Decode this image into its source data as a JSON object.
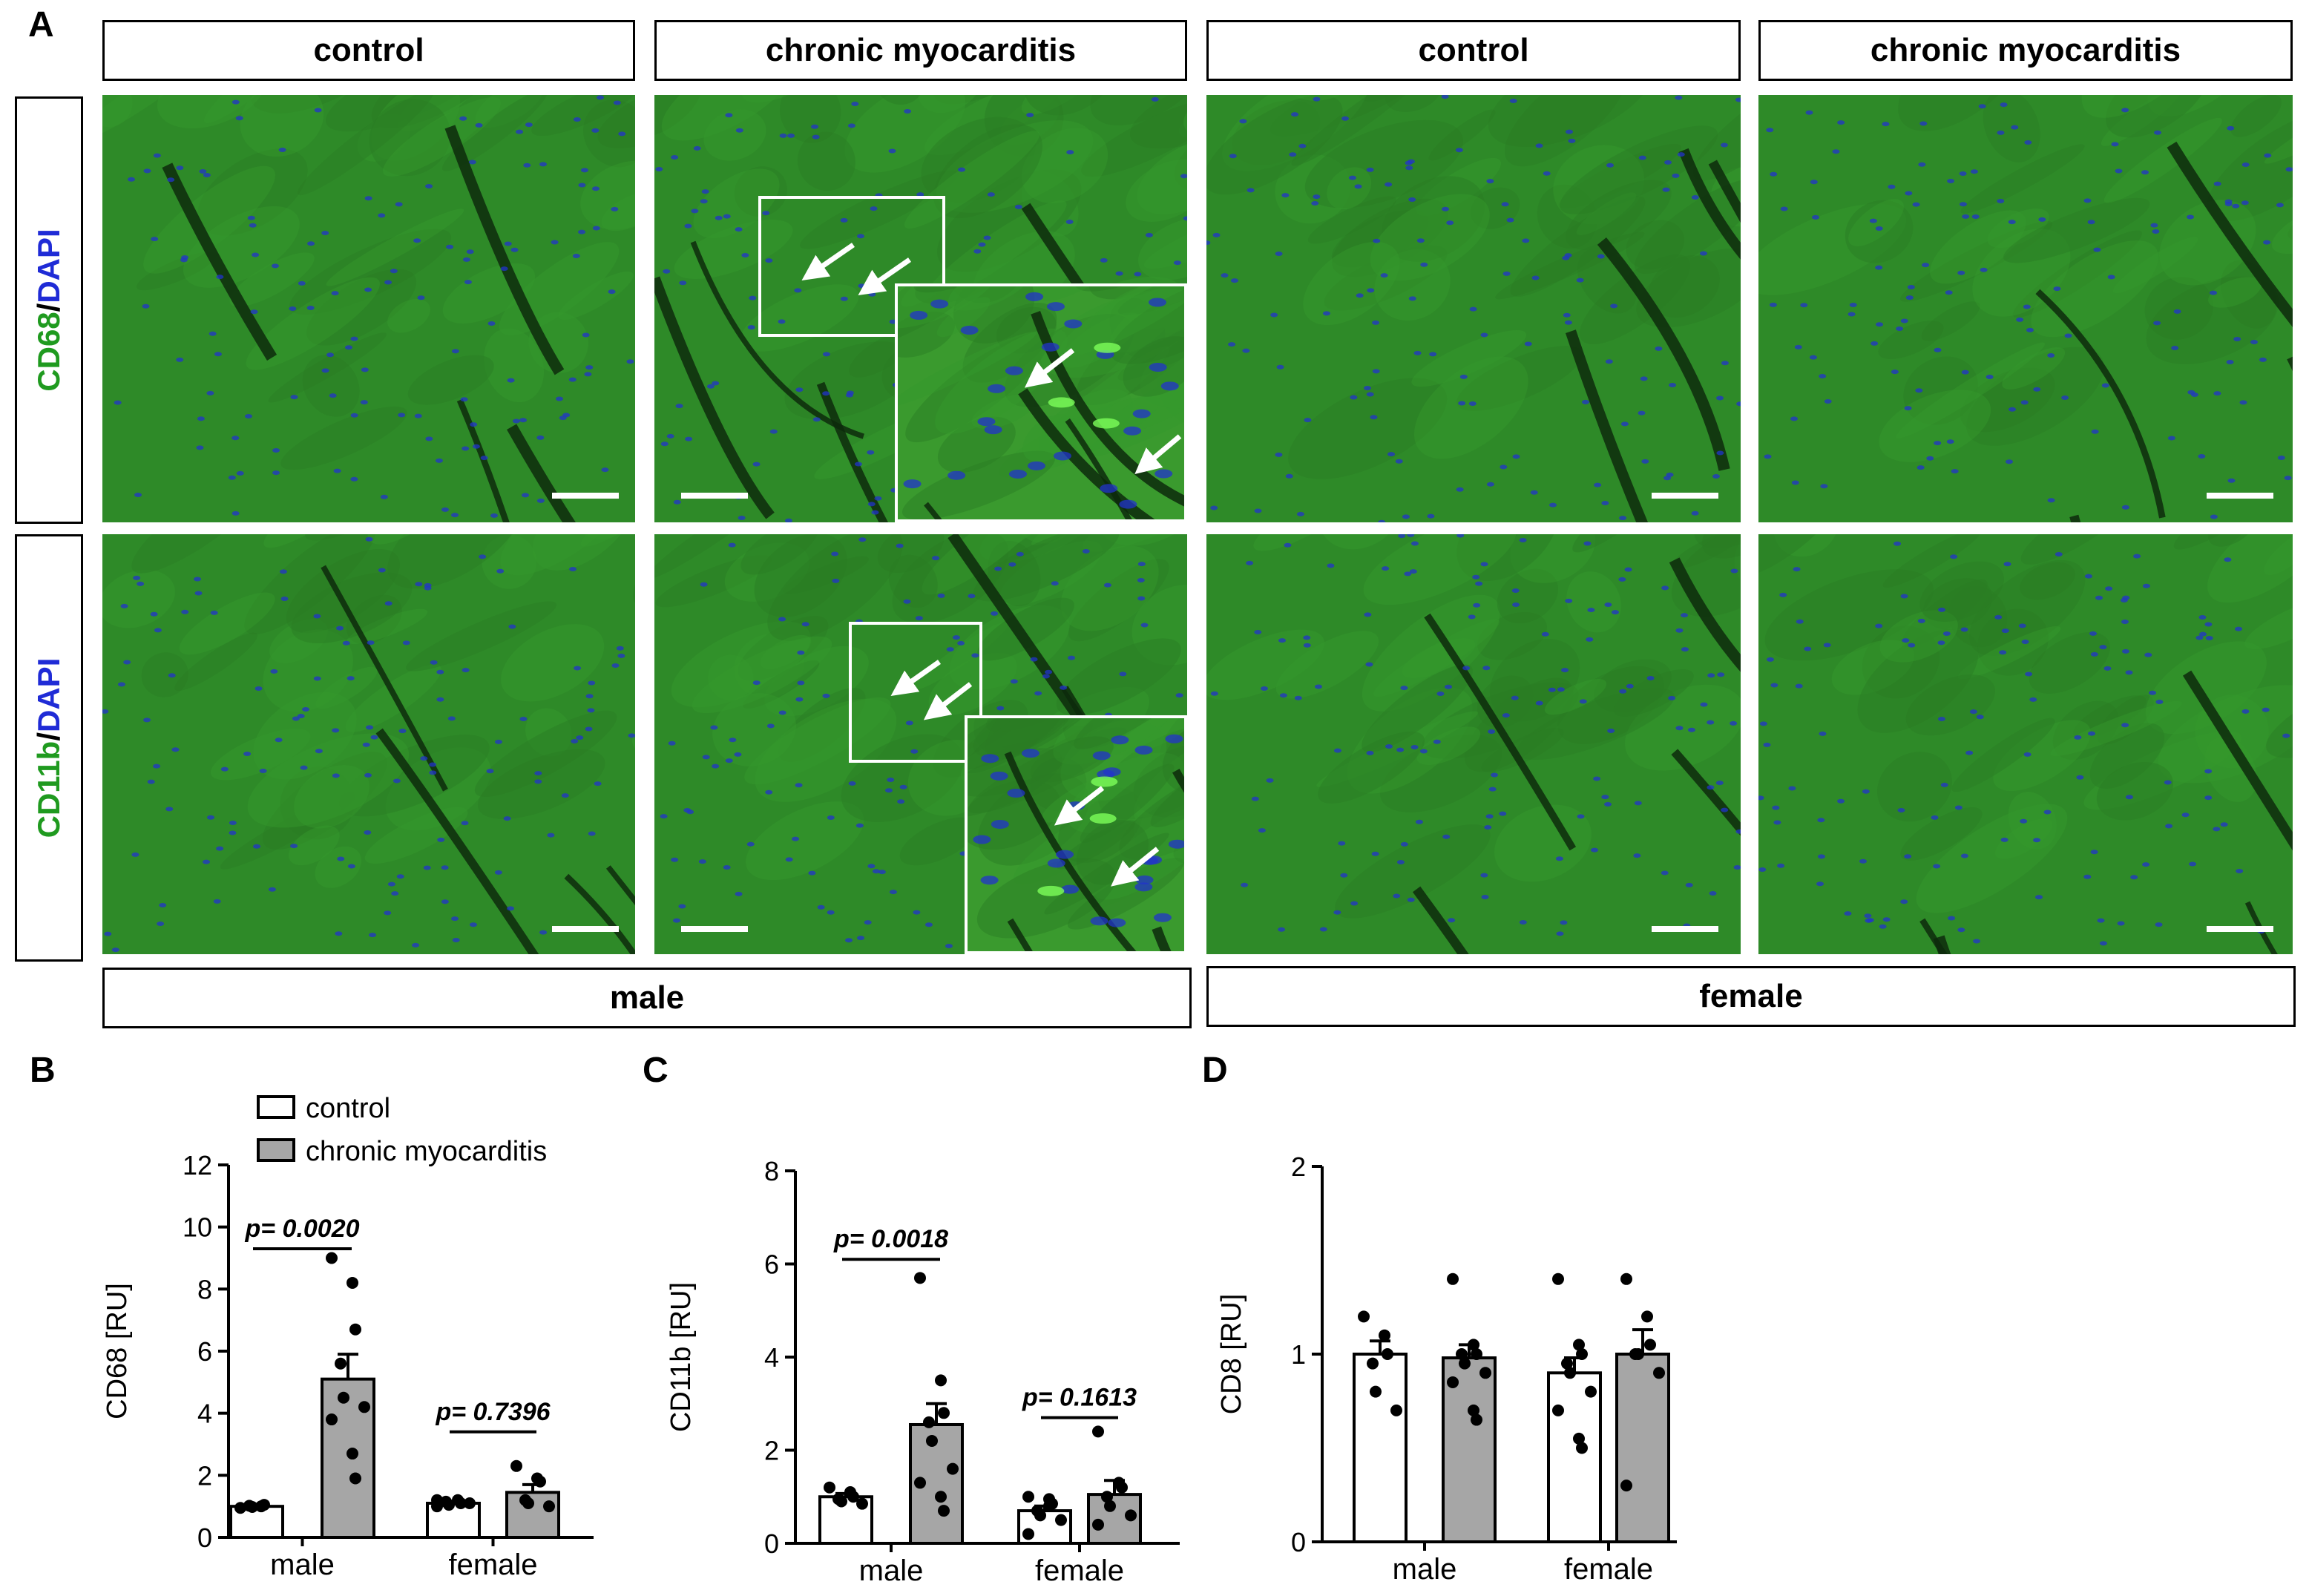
{
  "panel_a": {
    "letter": "A",
    "headers": [
      "control",
      "chronic myocarditis",
      "control",
      "chronic myocarditis"
    ],
    "row_labels": [
      {
        "marker": "CD68",
        "sep": "/",
        "stain": "DAPI"
      },
      {
        "marker": "CD11b",
        "sep": "/",
        "stain": "DAPI"
      }
    ],
    "sex_labels": [
      "male",
      "female"
    ],
    "colors": {
      "marker": "#1f9a1f",
      "stain": "#1f2bd6",
      "tissue": "#2f8a2a",
      "nuclei": "#2233cc"
    }
  },
  "legend": {
    "control": "control",
    "myocarditis": "chronic myocarditis",
    "control_color": "#ffffff",
    "myocarditis_color": "#a6a6a6"
  },
  "chart_data": [
    {
      "panel": "B",
      "type": "bar",
      "categories": [
        "male",
        "female"
      ],
      "ylabel": "CD68 [RU]",
      "ylim": [
        0,
        12
      ],
      "yticks": [
        "0",
        "2",
        "4",
        "6",
        "8",
        "10",
        "12"
      ],
      "series": [
        {
          "name": "control",
          "values": [
            1.0,
            1.1
          ],
          "sem": [
            0.03,
            0.05
          ],
          "points": [
            [
              0.95,
              1.0,
              1.05,
              1.02,
              0.98
            ],
            [
              1.0,
              1.2,
              1.1,
              1.15,
              1.05,
              1.1,
              1.2
            ]
          ]
        },
        {
          "name": "chronic myocarditis",
          "values": [
            5.1,
            1.45
          ],
          "sem": [
            0.8,
            0.25
          ],
          "points": [
            [
              9.0,
              8.2,
              6.7,
              5.6,
              4.5,
              4.2,
              3.8,
              2.7,
              1.9
            ],
            [
              2.3,
              1.9,
              1.8,
              1.2,
              1.1,
              1.0
            ]
          ]
        }
      ],
      "annotations": [
        {
          "text": "p= 0.0020",
          "group": 0,
          "y": 9.3
        },
        {
          "text": "p= 0.7396",
          "group": 1,
          "y": 3.4
        }
      ]
    },
    {
      "panel": "C",
      "type": "bar",
      "categories": [
        "male",
        "female"
      ],
      "ylabel": "CD11b [RU]",
      "ylim": [
        0,
        8
      ],
      "yticks": [
        "0",
        "2",
        "4",
        "6",
        "8"
      ],
      "series": [
        {
          "name": "control",
          "values": [
            1.0,
            0.7
          ],
          "sem": [
            0.07,
            0.1
          ],
          "points": [
            [
              1.2,
              1.1,
              1.0,
              0.95,
              0.9,
              0.85
            ],
            [
              1.0,
              0.95,
              0.85,
              0.7,
              0.6,
              0.5,
              0.2,
              0.8
            ]
          ]
        },
        {
          "name": "chronic myocarditis",
          "values": [
            2.55,
            1.05
          ],
          "sem": [
            0.45,
            0.3
          ],
          "points": [
            [
              5.7,
              3.5,
              2.8,
              2.6,
              2.2,
              1.6,
              1.3,
              1.0,
              0.7
            ],
            [
              2.4,
              1.3,
              1.2,
              1.0,
              0.8,
              0.6,
              0.4
            ]
          ]
        }
      ],
      "annotations": [
        {
          "text": "p= 0.0018",
          "group": 0,
          "y": 6.1
        },
        {
          "text": "p= 0.1613",
          "group": 1,
          "y": 2.7
        }
      ]
    },
    {
      "panel": "D",
      "type": "bar",
      "categories": [
        "male",
        "female"
      ],
      "ylabel": "CD8 [RU]",
      "ylim": [
        0,
        2
      ],
      "yticks": [
        "0",
        "1",
        "2"
      ],
      "series": [
        {
          "name": "control",
          "values": [
            1.0,
            0.9
          ],
          "sem": [
            0.07,
            0.08
          ],
          "points": [
            [
              1.2,
              1.1,
              1.0,
              0.95,
              0.8,
              0.7
            ],
            [
              1.4,
              1.05,
              1.0,
              0.95,
              0.9,
              0.8,
              0.7,
              0.55,
              0.5
            ]
          ]
        },
        {
          "name": "chronic myocarditis",
          "values": [
            0.98,
            1.0
          ],
          "sem": [
            0.07,
            0.13
          ],
          "points": [
            [
              1.4,
              1.05,
              1.0,
              1.0,
              0.95,
              0.9,
              0.85,
              0.7,
              0.65
            ],
            [
              1.4,
              1.2,
              1.05,
              1.0,
              1.0,
              0.9,
              0.3
            ]
          ]
        }
      ],
      "annotations": []
    }
  ]
}
